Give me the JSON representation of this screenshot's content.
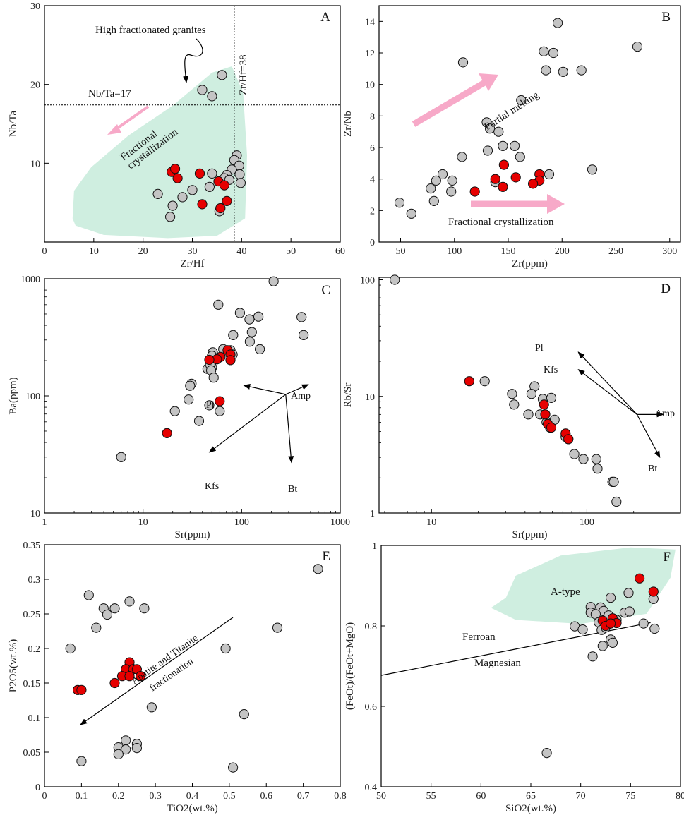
{
  "figure": {
    "colors": {
      "gray": "#c4c4c4",
      "red": "#e60000",
      "edge": "#111111",
      "field": "#cfeee0",
      "arrow": "#f7a9c8",
      "line": "#000000"
    },
    "panel_labels": [
      "A",
      "B",
      "C",
      "D",
      "E",
      "F"
    ]
  },
  "chart_data": [
    {
      "id": "A",
      "type": "scatter",
      "xlabel": "Zr/Hf",
      "ylabel": "Nb/Ta",
      "xlim": [
        0,
        60
      ],
      "ylim": [
        0,
        30
      ],
      "xticks": [
        0,
        10,
        20,
        30,
        40,
        50,
        60
      ],
      "yticks": [
        10,
        20,
        30
      ],
      "annotations": {
        "hfg": "High fractionated granites",
        "nbta": "Nb/Ta=17",
        "zrhf": "Zr/Hf=38",
        "fc1": "Fractional",
        "fc2": "crystallization"
      },
      "ref_lines": {
        "h": 17.4,
        "v": 38.5
      },
      "series": [
        {
          "name": "gray",
          "points": [
            [
              36,
              21.2
            ],
            [
              32,
              19.3
            ],
            [
              34,
              18.5
            ],
            [
              39,
              11
            ],
            [
              38.5,
              10.4
            ],
            [
              39.5,
              9.7
            ],
            [
              38,
              9.2
            ],
            [
              34,
              8.7
            ],
            [
              37,
              8.5
            ],
            [
              36.5,
              8.1
            ],
            [
              39.6,
              8.6
            ],
            [
              37.5,
              7.9
            ],
            [
              39.8,
              7.5
            ],
            [
              33.5,
              7
            ],
            [
              30,
              6.6
            ],
            [
              23,
              6.1
            ],
            [
              28,
              5.7
            ],
            [
              26,
              4.6
            ],
            [
              35.5,
              3.9
            ],
            [
              25.5,
              3.2
            ]
          ]
        },
        {
          "name": "red",
          "points": [
            [
              25.8,
              8.9
            ],
            [
              26.5,
              9.3
            ],
            [
              27,
              8.1
            ],
            [
              31.5,
              8.7
            ],
            [
              35.3,
              7.7
            ],
            [
              36.5,
              7.2
            ],
            [
              37,
              5.2
            ],
            [
              35.7,
              4.3
            ],
            [
              32,
              4.8
            ]
          ]
        }
      ]
    },
    {
      "id": "B",
      "type": "scatter",
      "xlabel": "Zr(ppm)",
      "ylabel": "Zr/Nb",
      "xlim": [
        30,
        310
      ],
      "ylim": [
        0,
        15
      ],
      "xticks": [
        50,
        100,
        150,
        200,
        250,
        300
      ],
      "yticks": [
        0,
        2,
        4,
        6,
        8,
        10,
        12,
        14
      ],
      "annotations": {
        "pm": "Partial melting",
        "fc": "Fractional  crystallization"
      },
      "series": [
        {
          "name": "gray",
          "points": [
            [
              196,
              13.9
            ],
            [
              183,
              12.1
            ],
            [
              192,
              12
            ],
            [
              270,
              12.4
            ],
            [
              108,
              11.4
            ],
            [
              185,
              10.9
            ],
            [
              201,
              10.8
            ],
            [
              218,
              10.9
            ],
            [
              162,
              9
            ],
            [
              130,
              7.6
            ],
            [
              133,
              7.2
            ],
            [
              141,
              7
            ],
            [
              131,
              5.8
            ],
            [
              145,
              6.1
            ],
            [
              156,
              6.1
            ],
            [
              107,
              5.4
            ],
            [
              161,
              5.4
            ],
            [
              89,
              4.3
            ],
            [
              188,
              4.3
            ],
            [
              228,
              4.6
            ],
            [
              98,
              3.9
            ],
            [
              83,
              3.9
            ],
            [
              138,
              3.8
            ],
            [
              78,
              3.4
            ],
            [
              97,
              3.2
            ],
            [
              81,
              2.6
            ],
            [
              49,
              2.5
            ],
            [
              60,
              1.8
            ]
          ]
        },
        {
          "name": "red",
          "points": [
            [
              146,
              4.9
            ],
            [
              138,
              4
            ],
            [
              157,
              4.1
            ],
            [
              145,
              3.5
            ],
            [
              119,
              3.2
            ],
            [
              179,
              4.3
            ],
            [
              179,
              3.9
            ],
            [
              173,
              3.7
            ]
          ]
        }
      ]
    },
    {
      "id": "C",
      "type": "scatter",
      "scale": "log-log",
      "xlabel": "Sr(ppm)",
      "ylabel": "Ba(ppm)",
      "xlim": [
        1,
        1000
      ],
      "ylim": [
        10,
        1000
      ],
      "xticks": [
        1,
        10,
        100,
        1000
      ],
      "yticks": [
        10,
        100,
        1000
      ],
      "vectors": {
        "origin": [
          280,
          103
        ],
        "Pl": [
          105,
          123
        ],
        "Amp": [
          475,
          125
        ],
        "Kfs": [
          47,
          33
        ],
        "Bt": [
          320,
          27
        ]
      },
      "series": [
        {
          "name": "gray",
          "points": [
            [
              211,
              950
            ],
            [
              58,
              600
            ],
            [
              96,
              510
            ],
            [
              148,
              475
            ],
            [
              405,
              470
            ],
            [
              120,
              450
            ],
            [
              127,
              350
            ],
            [
              82,
              330
            ],
            [
              425,
              330
            ],
            [
              121,
              290
            ],
            [
              153,
              250
            ],
            [
              65,
              250
            ],
            [
              77,
              245
            ],
            [
              51,
              235
            ],
            [
              81,
              225
            ],
            [
              50,
              220
            ],
            [
              58,
              210
            ],
            [
              48,
              190
            ],
            [
              45,
              170
            ],
            [
              50,
              175
            ],
            [
              48,
              185
            ],
            [
              49,
              165
            ],
            [
              31,
              127
            ],
            [
              30,
              122
            ],
            [
              52,
              143
            ],
            [
              47,
              83
            ],
            [
              60,
              74
            ],
            [
              29,
              93
            ],
            [
              21,
              74
            ],
            [
              37,
              61
            ],
            [
              6,
              30
            ]
          ]
        },
        {
          "name": "red",
          "points": [
            [
              72,
              245
            ],
            [
              77,
              225
            ],
            [
              61,
              215
            ],
            [
              56,
              205
            ],
            [
              47,
              203
            ],
            [
              77,
              202
            ],
            [
              60,
              90
            ],
            [
              17.5,
              48
            ]
          ]
        }
      ]
    },
    {
      "id": "D",
      "type": "scatter",
      "scale": "log-log",
      "xlabel": "Sr(ppm)",
      "ylabel": "Rb/Sr",
      "xlim": [
        4.6,
        400
      ],
      "ylim": [
        1,
        105
      ],
      "xticks": [
        10,
        100
      ],
      "yticks": [
        1,
        10,
        100
      ],
      "vectors": {
        "origin": [
          210,
          7
        ],
        "Pl": [
          88,
          24
        ],
        "Kfs": [
          88,
          17
        ],
        "Amp": [
          310,
          7
        ],
        "Bt": [
          295,
          3
        ]
      },
      "series": [
        {
          "name": "gray",
          "points": [
            [
              5.8,
              100
            ],
            [
              22,
              13.5
            ],
            [
              33,
              10.5
            ],
            [
              34,
              8.5
            ],
            [
              46,
              12.2
            ],
            [
              44,
              10.5
            ],
            [
              52,
              9.5
            ],
            [
              59,
              9.7
            ],
            [
              42,
              7
            ],
            [
              50,
              7
            ],
            [
              62,
              6.3
            ],
            [
              55,
              6
            ],
            [
              58,
              5.4
            ],
            [
              76,
              4.3
            ],
            [
              83,
              3.2
            ],
            [
              95,
              2.9
            ],
            [
              115,
              2.9
            ],
            [
              117,
              2.4
            ],
            [
              146,
              1.85
            ],
            [
              149,
              1.85
            ],
            [
              155,
              1.25
            ],
            [
              73,
              4.5
            ]
          ]
        },
        {
          "name": "red",
          "points": [
            [
              17.5,
              13.5
            ],
            [
              53,
              8.5
            ],
            [
              54,
              7
            ],
            [
              56,
              5.8
            ],
            [
              59,
              5.4
            ],
            [
              73,
              4.8
            ],
            [
              76,
              4.3
            ]
          ]
        }
      ]
    },
    {
      "id": "E",
      "type": "scatter",
      "xlabel": "TiO2(wt.%)",
      "ylabel": "P2O5(wt.%)",
      "xlim": [
        0,
        0.8
      ],
      "ylim": [
        0,
        0.35
      ],
      "xticks": [
        0,
        0.1,
        0.2,
        0.3,
        0.4,
        0.5,
        0.6,
        0.7,
        0.8
      ],
      "yticks": [
        0,
        0.05,
        0.1,
        0.15,
        0.2,
        0.25,
        0.3,
        0.35
      ],
      "annotations": {
        "l1": "Apatite and Titanite",
        "l2": "fractionation"
      },
      "series": [
        {
          "name": "gray",
          "points": [
            [
              0.12,
              0.277
            ],
            [
              0.16,
              0.258
            ],
            [
              0.19,
              0.258
            ],
            [
              0.23,
              0.268
            ],
            [
              0.27,
              0.258
            ],
            [
              0.17,
              0.249
            ],
            [
              0.14,
              0.23
            ],
            [
              0.74,
              0.315
            ],
            [
              0.63,
              0.23
            ],
            [
              0.07,
              0.2
            ],
            [
              0.49,
              0.2
            ],
            [
              0.29,
              0.115
            ],
            [
              0.54,
              0.105
            ],
            [
              0.22,
              0.067
            ],
            [
              0.25,
              0.062
            ],
            [
              0.2,
              0.057
            ],
            [
              0.22,
              0.054
            ],
            [
              0.25,
              0.056
            ],
            [
              0.2,
              0.047
            ],
            [
              0.1,
              0.037
            ],
            [
              0.51,
              0.028
            ]
          ]
        },
        {
          "name": "red",
          "points": [
            [
              0.23,
              0.18
            ],
            [
              0.22,
              0.17
            ],
            [
              0.24,
              0.17
            ],
            [
              0.21,
              0.16
            ],
            [
              0.25,
              0.17
            ],
            [
              0.26,
              0.16
            ],
            [
              0.19,
              0.15
            ],
            [
              0.09,
              0.14
            ],
            [
              0.1,
              0.14
            ],
            [
              0.23,
              0.16
            ]
          ]
        }
      ]
    },
    {
      "id": "F",
      "type": "scatter",
      "xlabel": "SiO2(wt.%)",
      "ylabel": "(FeOt)/(FeOt+MgO)",
      "xlim": [
        50,
        80
      ],
      "ylim": [
        0.4,
        1
      ],
      "xticks": [
        50,
        55,
        60,
        65,
        70,
        75,
        80
      ],
      "yticks": [
        0.4,
        0.6,
        0.8,
        1.0
      ],
      "annotations": {
        "atype": "A-type",
        "ferroan": "Ferroan",
        "magnesian": "Magnesian"
      },
      "boundary": [
        [
          50,
          0.677
        ],
        [
          77,
          0.808
        ]
      ],
      "series": [
        {
          "name": "gray",
          "points": [
            [
              77.3,
              0.867
            ],
            [
              74.8,
              0.882
            ],
            [
              73,
              0.87
            ],
            [
              71,
              0.847
            ],
            [
              72,
              0.846
            ],
            [
              72.3,
              0.837
            ],
            [
              71,
              0.833
            ],
            [
              71.5,
              0.829
            ],
            [
              74.4,
              0.833
            ],
            [
              74.9,
              0.836
            ],
            [
              72.8,
              0.826
            ],
            [
              73.6,
              0.815
            ],
            [
              71.8,
              0.809
            ],
            [
              69.4,
              0.799
            ],
            [
              70.2,
              0.791
            ],
            [
              72.1,
              0.79
            ],
            [
              76.3,
              0.806
            ],
            [
              77.4,
              0.793
            ],
            [
              73,
              0.766
            ],
            [
              73.2,
              0.758
            ],
            [
              72.2,
              0.75
            ],
            [
              71.2,
              0.724
            ],
            [
              66.6,
              0.484
            ],
            [
              72.5,
              0.796
            ]
          ]
        },
        {
          "name": "red",
          "points": [
            [
              75.9,
              0.918
            ],
            [
              77.3,
              0.885
            ],
            [
              73.2,
              0.819
            ],
            [
              72.2,
              0.813
            ],
            [
              73.6,
              0.807
            ],
            [
              72.5,
              0.8
            ],
            [
              73,
              0.806
            ]
          ]
        }
      ]
    }
  ]
}
